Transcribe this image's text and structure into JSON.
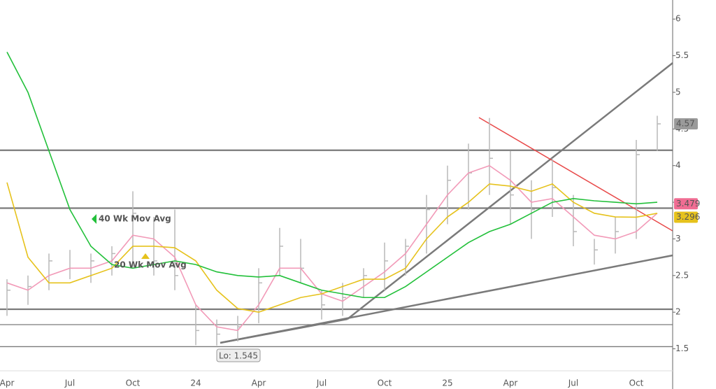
{
  "chart_data": {
    "type": "ohlc",
    "categories": [
      "Apr",
      null,
      null,
      "Jul",
      null,
      null,
      "Oct",
      null,
      null,
      "24",
      null,
      null,
      "Apr",
      null,
      null,
      "Jul",
      null,
      null,
      "Oct",
      null,
      null,
      "25",
      null,
      null,
      "Apr",
      null,
      null,
      "Jul",
      null,
      null,
      "Oct",
      null
    ],
    "high": [
      2.45,
      2.5,
      2.8,
      2.85,
      2.8,
      2.9,
      3.65,
      3.3,
      3.4,
      2.1,
      1.9,
      1.95,
      2.6,
      3.15,
      3.0,
      2.3,
      2.4,
      2.6,
      2.95,
      3.0,
      3.6,
      4.0,
      4.3,
      4.65,
      4.2,
      3.8,
      4.1,
      3.6,
      3.0,
      3.3,
      4.35,
      4.68
    ],
    "low": [
      1.95,
      2.1,
      2.3,
      2.45,
      2.4,
      2.5,
      2.6,
      2.5,
      2.3,
      1.55,
      1.545,
      1.6,
      1.85,
      2.5,
      2.4,
      1.9,
      1.95,
      2.2,
      2.3,
      2.5,
      2.8,
      3.2,
      3.4,
      3.6,
      3.2,
      3.0,
      3.3,
      2.9,
      2.65,
      2.8,
      3.0,
      4.2
    ],
    "close": [
      2.3,
      2.35,
      2.7,
      2.6,
      2.7,
      2.8,
      3.35,
      2.7,
      2.5,
      1.75,
      1.7,
      1.8,
      2.4,
      2.9,
      2.6,
      2.1,
      2.2,
      2.5,
      2.7,
      2.9,
      3.4,
      3.8,
      3.9,
      4.1,
      3.6,
      3.4,
      3.7,
      3.1,
      2.85,
      3.1,
      4.15,
      4.57
    ],
    "bar_color": "#b8b8b8",
    "series": [
      {
        "color": "#f29ab8",
        "values": [
          2.4,
          2.3,
          2.5,
          2.6,
          2.6,
          2.7,
          3.05,
          3.0,
          2.75,
          2.1,
          1.8,
          1.75,
          2.1,
          2.6,
          2.6,
          2.25,
          2.15,
          2.35,
          2.55,
          2.8,
          3.2,
          3.6,
          3.9,
          4.0,
          3.8,
          3.5,
          3.55,
          3.3,
          3.05,
          3.0,
          3.1,
          3.35
        ]
      },
      {
        "name": "20 Wk Mov Avg",
        "color": "#e6c21c",
        "values": [
          3.77,
          2.75,
          2.4,
          2.4,
          2.5,
          2.6,
          2.9,
          2.9,
          2.88,
          2.7,
          2.3,
          2.05,
          2.0,
          2.1,
          2.2,
          2.25,
          2.35,
          2.45,
          2.45,
          2.6,
          3.0,
          3.3,
          3.5,
          3.75,
          3.72,
          3.65,
          3.75,
          3.5,
          3.35,
          3.3,
          3.296,
          3.35
        ]
      },
      {
        "name": "40 Wk Mov Avg",
        "color": "#22c03a",
        "values": [
          5.55,
          5.0,
          4.2,
          3.4,
          2.9,
          2.65,
          2.6,
          2.65,
          2.7,
          2.65,
          2.55,
          2.5,
          2.48,
          2.5,
          2.4,
          2.3,
          2.25,
          2.2,
          2.2,
          2.35,
          2.55,
          2.75,
          2.95,
          3.1,
          3.2,
          3.35,
          3.5,
          3.55,
          3.52,
          3.5,
          3.479,
          3.5
        ]
      }
    ],
    "horizontal_lines": [
      4.21,
      3.42,
      2.04,
      1.83,
      1.53
    ],
    "price_tags": [
      {
        "value": 4.57,
        "color": "#9a9a9a"
      },
      {
        "value": 3.479,
        "color": "#f06d93"
      },
      {
        "value": 3.296,
        "color": "#e6c21c"
      }
    ],
    "low_label": "Lo: 1.545",
    "ylim": [
      1.2,
      6.26
    ],
    "yticks": [
      6,
      5.5,
      5,
      4.5,
      4,
      3.5,
      3,
      2.5,
      2,
      1.5
    ]
  }
}
